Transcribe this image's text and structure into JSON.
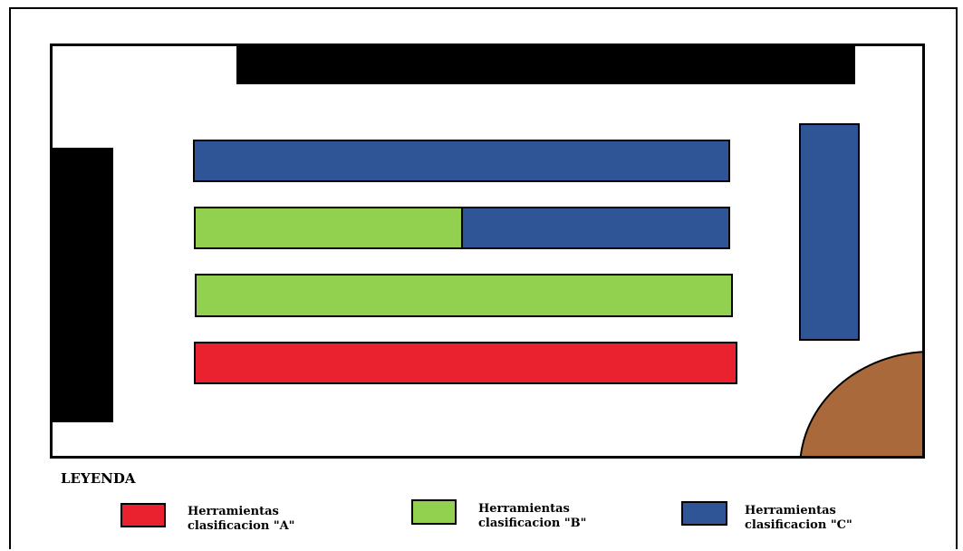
{
  "legend": {
    "title": "LEYENDA",
    "items": [
      {
        "line1": "Herramientas",
        "line2": "clasificacion \"A\"",
        "color": "#ea2230"
      },
      {
        "line1": "Herramientas",
        "line2": "clasificacion \"B\"",
        "color": "#92d050"
      },
      {
        "line1": "Herramientas",
        "line2": "clasificacion \"C\"",
        "color": "#2f5597"
      }
    ]
  },
  "colors": {
    "class_a": "#ea2230",
    "class_b": "#92d050",
    "class_c": "#2f5597",
    "wall_block": "#000000",
    "corner_area": "#a9693b"
  }
}
